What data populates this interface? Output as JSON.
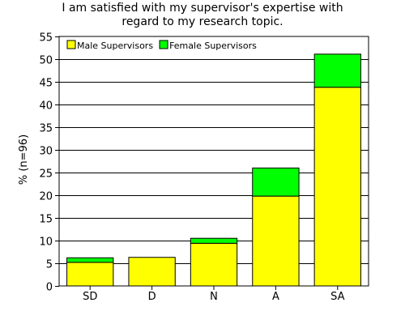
{
  "chart_data": {
    "type": "bar",
    "stacked": true,
    "title_lines": [
      "I am satisfied with my supervisor's expertise with",
      "regard to my research topic."
    ],
    "xlabel": "",
    "ylabel": "% (n=96)",
    "categories": [
      "SD",
      "D",
      "N",
      "A",
      "SA"
    ],
    "series": [
      {
        "name": "Male Supervisors",
        "color": "#ffff00",
        "values": [
          5.2,
          6.3,
          9.4,
          19.8,
          43.8
        ]
      },
      {
        "name": "Female Supervisors",
        "color": "#00ff00",
        "values": [
          1.0,
          0.0,
          1.1,
          6.2,
          7.3
        ]
      }
    ],
    "ylim": [
      0,
      55
    ],
    "yticks": [
      0,
      5,
      10,
      15,
      20,
      25,
      30,
      35,
      40,
      45,
      50,
      55
    ],
    "grid": true,
    "legend_position": "top-left"
  }
}
